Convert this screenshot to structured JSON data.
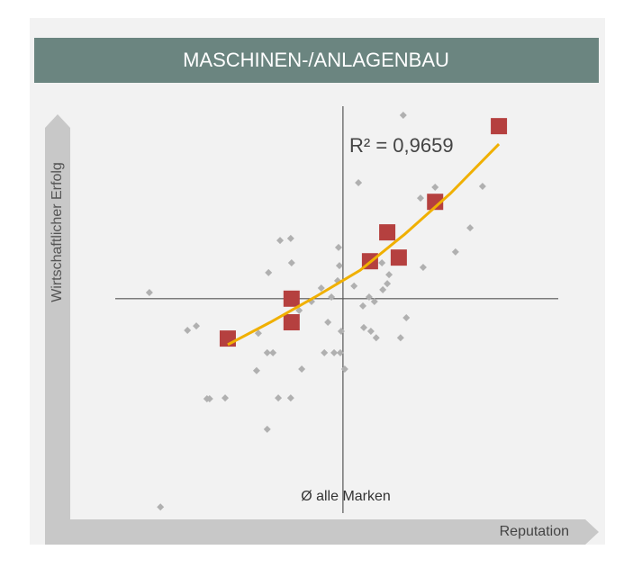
{
  "chart_data": {
    "type": "scatter",
    "title": "MASCHINEN-/ANLAGENBAU",
    "y_label": "Wirtschaftlicher Erfolg",
    "x_label": "Reputation",
    "annotation_r2": "R² = 0,9659",
    "annotation_mean": "Ø alle Marken",
    "xlim": [
      0,
      100
    ],
    "ylim": [
      0,
      100
    ],
    "reference_x": 51.4,
    "reference_y": 52.7,
    "series": [
      {
        "color": "#b0b0b0",
        "marker": "diamond",
        "x": [
          7.7,
          10.2,
          16.3,
          18.3,
          20.7,
          21.3,
          24.8,
          32.3,
          31.9,
          34.3,
          35.6,
          34.3,
          34.6,
          37.2,
          39.6,
          39.8,
          36.8,
          39.6,
          42.1,
          41.5,
          44.3,
          46.5,
          47.2,
          48.0,
          49.4,
          50.8,
          50.4,
          50.6,
          50.2,
          48.8,
          51.0,
          51.8,
          54.9,
          53.9,
          55.9,
          56.1,
          57.3,
          57.7,
          58.9,
          58.5,
          60.4,
          61.4,
          61.8,
          60.2,
          60.4,
          64.4,
          65.7,
          69.5,
          68.9,
          72.2,
          76.8,
          80.1,
          82.9,
          65.0
        ],
        "values": [
          54.2,
          1.5,
          44.9,
          46.0,
          28.1,
          28.1,
          28.3,
          44.2,
          35.0,
          39.4,
          39.4,
          20.6,
          59.1,
          67.0,
          67.5,
          61.5,
          28.3,
          28.3,
          35.4,
          49.8,
          52.0,
          55.3,
          39.4,
          46.9,
          39.4,
          39.4,
          65.3,
          60.8,
          57.1,
          53.1,
          44.7,
          35.4,
          81.2,
          55.8,
          50.9,
          45.6,
          53.1,
          44.7,
          43.1,
          52.0,
          54.9,
          56.4,
          58.6,
          61.5,
          68.1,
          43.1,
          48.0,
          60.4,
          77.4,
          80.1,
          64.2,
          70.1,
          80.3,
          97.8
        ]
      },
      {
        "color": "#b5403f",
        "marker": "square",
        "x": [
          25.4,
          39.8,
          39.8,
          57.5,
          61.4,
          64.0,
          72.2,
          86.6
        ],
        "values": [
          42.9,
          52.7,
          46.9,
          61.9,
          69.0,
          62.8,
          76.5,
          95.1
        ]
      },
      {
        "color": "#f0b000",
        "marker": "line",
        "x": [
          25.4,
          35.0,
          45.1,
          55.3,
          65.4,
          75.6,
          86.6
        ],
        "values": [
          41.4,
          46.9,
          53.1,
          59.7,
          68.6,
          78.5,
          90.7
        ]
      }
    ]
  }
}
